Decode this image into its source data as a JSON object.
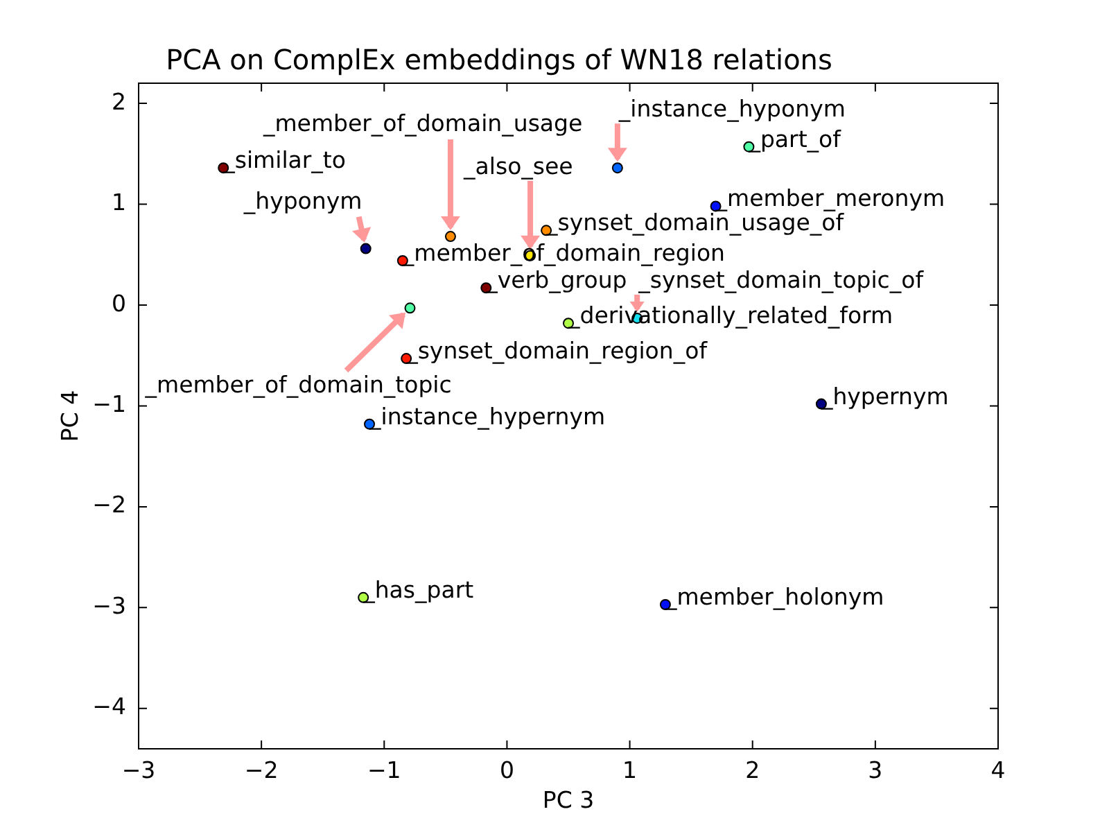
{
  "chart_data": {
    "type": "scatter",
    "title": "PCA on ComplEx embeddings of WN18 relations",
    "xlabel": "PC 3",
    "ylabel": "PC 4",
    "x": [
      -2.31,
      -1.15,
      -0.85,
      -0.79,
      -0.46,
      -0.17,
      -0.82,
      -1.12,
      -1.17,
      1.29,
      2.56,
      0.19,
      0.32,
      0.9,
      1.97,
      1.7,
      0.5,
      1.06
    ],
    "values": [
      1.36,
      0.56,
      0.44,
      -0.03,
      0.68,
      0.17,
      -0.53,
      -1.18,
      -2.9,
      -2.97,
      -0.98,
      0.49,
      0.74,
      1.36,
      1.57,
      0.98,
      -0.18,
      -0.13
    ],
    "colors": [
      "#800000",
      "#000080",
      "#ff1a00",
      "#50ffa6",
      "#ff8c00",
      "#800000",
      "#ff1a00",
      "#0064ff",
      "#b0ff46",
      "#0010ff",
      "#000080",
      "#ffe600",
      "#ff8c00",
      "#0064ff",
      "#50ffa6",
      "#0010ff",
      "#b0ff46",
      "#16e0f0"
    ],
    "marker": "circle",
    "annotations": [
      {
        "text": "_similar_to",
        "x": -2.31,
        "y": 1.36
      },
      {
        "text": "_hyponym",
        "x": -1.15,
        "y": 0.56
      },
      {
        "text": "_member_of_domain_region",
        "x": -0.85,
        "y": 0.44
      },
      {
        "text": "_member_of_domain_topic",
        "x": -0.79,
        "y": -0.03
      },
      {
        "text": "_member_of_domain_usage",
        "x": -0.46,
        "y": 0.68
      },
      {
        "text": "_verb_group",
        "x": -0.17,
        "y": 0.17
      },
      {
        "text": "_synset_domain_region_of",
        "x": -0.82,
        "y": -0.53
      },
      {
        "text": "_instance_hypernym",
        "x": -1.12,
        "y": -1.18
      },
      {
        "text": "_has_part",
        "x": -1.17,
        "y": -2.9
      },
      {
        "text": "_member_holonym",
        "x": 1.29,
        "y": -2.97
      },
      {
        "text": "_hypernym",
        "x": 2.56,
        "y": -0.98
      },
      {
        "text": "_also_see",
        "x": 0.19,
        "y": 0.49
      },
      {
        "text": "_synset_domain_usage_of",
        "x": 0.32,
        "y": 0.74
      },
      {
        "text": "_instance_hyponym",
        "x": 0.9,
        "y": 1.36
      },
      {
        "text": "_part_of",
        "x": 1.97,
        "y": 1.57
      },
      {
        "text": "_member_meronym",
        "x": 1.7,
        "y": 0.98
      },
      {
        "text": "_derivationally_related_form",
        "x": 0.5,
        "y": -0.18
      },
      {
        "text": "_synset_domain_topic_of",
        "x": 1.06,
        "y": -0.13
      }
    ],
    "xlim": [
      -3,
      4
    ],
    "ylim": [
      -4.4,
      2.2
    ],
    "xticks": [
      {
        "value": -3,
        "label": "−3"
      },
      {
        "value": -2,
        "label": "−2"
      },
      {
        "value": -1,
        "label": "−1"
      },
      0,
      1,
      2,
      3,
      4
    ],
    "yticks": [
      {
        "value": -4,
        "label": "−4"
      },
      {
        "value": -3,
        "label": "−3"
      },
      {
        "value": -2,
        "label": "−2"
      },
      {
        "value": -1,
        "label": "−1"
      },
      0,
      1,
      2
    ]
  }
}
